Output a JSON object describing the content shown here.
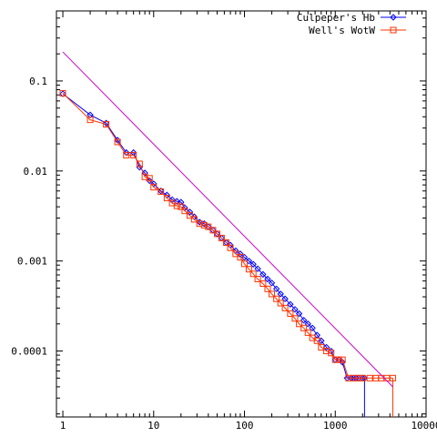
{
  "chart_data": {
    "type": "scatter",
    "title": "",
    "xlabel": "",
    "ylabel": "",
    "x_scale": "log",
    "y_scale": "log",
    "xlim": [
      0.85,
      10000
    ],
    "ylim": [
      1.85e-05,
      0.6
    ],
    "x_ticks": [
      {
        "value": 1,
        "label": "1"
      },
      {
        "value": 10,
        "label": "10"
      },
      {
        "value": 100,
        "label": "100"
      },
      {
        "value": 1000,
        "label": "1000"
      },
      {
        "value": 10000,
        "label": "10000"
      }
    ],
    "y_ticks": [
      {
        "value": 0.1,
        "label": "0.1"
      },
      {
        "value": 0.01,
        "label": "0.01"
      },
      {
        "value": 0.001,
        "label": "0.001"
      },
      {
        "value": 0.0001,
        "label": "0.0001"
      }
    ],
    "legend": {
      "position": "top-right"
    },
    "grid": false,
    "series": [
      {
        "name": "Culpeper's Hb",
        "color": "#0000ff",
        "marker": "diamond",
        "x": [
          1,
          2,
          3,
          4,
          5,
          6,
          7,
          8,
          9,
          10,
          12,
          14,
          16,
          18,
          20,
          22,
          25,
          28,
          32,
          36,
          40,
          45,
          50,
          56,
          63,
          70,
          80,
          90,
          100,
          112,
          125,
          140,
          160,
          180,
          200,
          225,
          250,
          280,
          320,
          360,
          400,
          450,
          500,
          560,
          630,
          700,
          800,
          900,
          1000,
          1100,
          1200,
          1350,
          1500,
          1600,
          1700,
          1800,
          2000,
          2100
        ],
        "y": [
          0.072,
          0.042,
          0.034,
          0.022,
          0.016,
          0.016,
          0.011,
          0.0095,
          0.0078,
          0.0072,
          0.006,
          0.0054,
          0.0048,
          0.0046,
          0.0045,
          0.0039,
          0.0035,
          0.0031,
          0.0027,
          0.0026,
          0.0024,
          0.0022,
          0.002,
          0.0018,
          0.0016,
          0.0015,
          0.0013,
          0.0012,
          0.0011,
          0.001,
          0.00092,
          0.00082,
          0.00071,
          0.00063,
          0.00057,
          0.00049,
          0.00043,
          0.00038,
          0.00033,
          0.00029,
          0.00026,
          0.00022,
          0.0002,
          0.00018,
          0.00015,
          0.00013,
          0.00011,
          0.0001,
          8e-05,
          8e-05,
          7.5e-05,
          5e-05,
          5e-05,
          5e-05,
          5e-05,
          5e-05,
          5e-05,
          5e-05
        ]
      },
      {
        "name": "Well's WotW",
        "color": "#ff3300",
        "marker": "square",
        "x": [
          1,
          2,
          3,
          4,
          5,
          6,
          7,
          8,
          9,
          10,
          12,
          14,
          16,
          18,
          20,
          22,
          25,
          28,
          32,
          36,
          40,
          45,
          50,
          56,
          63,
          70,
          80,
          90,
          100,
          112,
          125,
          140,
          160,
          180,
          200,
          225,
          250,
          280,
          320,
          360,
          400,
          450,
          500,
          560,
          630,
          700,
          800,
          900,
          1000,
          1100,
          1200,
          1400,
          1600,
          1800,
          2000,
          2400,
          2800,
          3200,
          3700,
          4300
        ],
        "y": [
          0.073,
          0.037,
          0.033,
          0.021,
          0.015,
          0.015,
          0.012,
          0.0086,
          0.0083,
          0.0066,
          0.0059,
          0.005,
          0.0044,
          0.0041,
          0.004,
          0.0036,
          0.0032,
          0.0029,
          0.0026,
          0.0025,
          0.0024,
          0.0022,
          0.002,
          0.0018,
          0.0016,
          0.0014,
          0.0012,
          0.0011,
          0.00093,
          0.00081,
          0.00072,
          0.00063,
          0.00056,
          0.00049,
          0.00043,
          0.00038,
          0.00034,
          0.0003,
          0.00026,
          0.00023,
          0.0002,
          0.00018,
          0.00016,
          0.00014,
          0.00013,
          0.00011,
          0.0001,
          9.5e-05,
          8e-05,
          8e-05,
          8e-05,
          5e-05,
          5e-05,
          5e-05,
          5e-05,
          5e-05,
          5e-05,
          5e-05,
          5e-05,
          5e-05
        ]
      },
      {
        "name": "",
        "color": "#cc00cc",
        "marker": "none",
        "x": [
          1,
          4300
        ],
        "y": [
          0.21,
          4e-05
        ]
      }
    ]
  }
}
